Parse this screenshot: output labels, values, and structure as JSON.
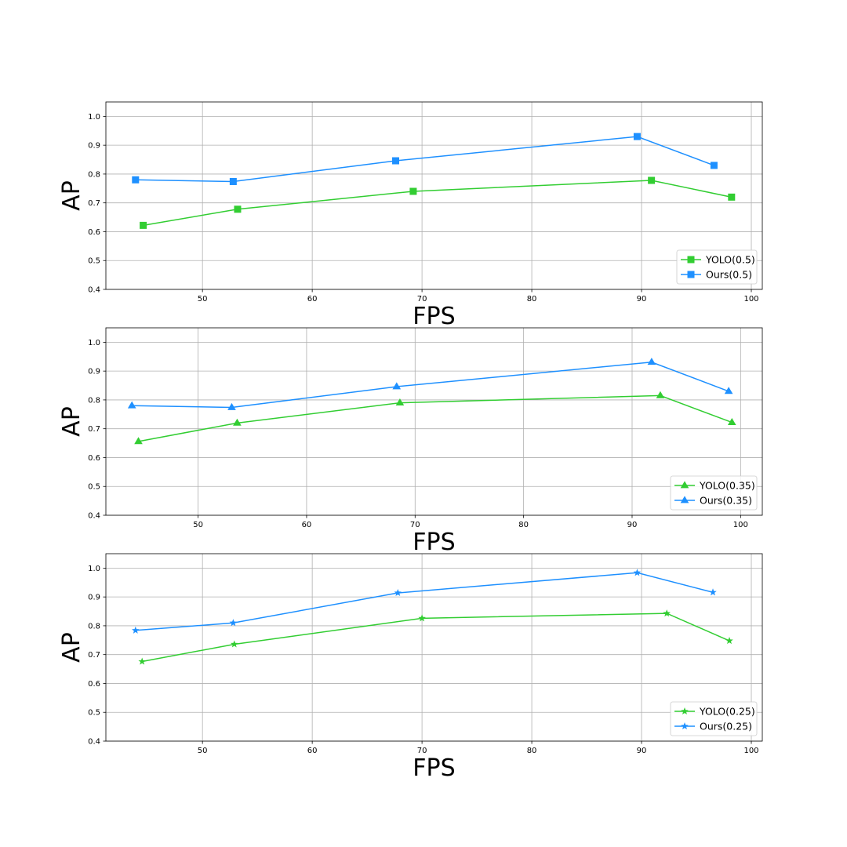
{
  "chart_data": [
    {
      "type": "line",
      "xlabel": "FPS",
      "ylabel": "AP",
      "xlim": [
        41.2,
        101.0
      ],
      "ylim": [
        0.4,
        1.05
      ],
      "xticks": [
        50,
        60,
        70,
        80,
        90,
        100
      ],
      "yticks": [
        0.4,
        0.5,
        0.6,
        0.7,
        0.8,
        0.9,
        1.0
      ],
      "xtick_labels": [
        "50",
        "60",
        "70",
        "80",
        "90",
        "100"
      ],
      "ytick_labels": [
        "0.4",
        "0.5",
        "0.6",
        "0.7",
        "0.8",
        "0.9",
        "1.0"
      ],
      "grid": true,
      "legend_position": "bottom-right",
      "marker": "square",
      "series": [
        {
          "name": "YOLO(0.5)",
          "color": "#32cd32",
          "x": [
            44.6,
            53.2,
            69.2,
            90.9,
            98.2
          ],
          "y": [
            0.622,
            0.678,
            0.74,
            0.778,
            0.72
          ]
        },
        {
          "name": "Ours(0.5)",
          "color": "#1e90ff",
          "x": [
            43.9,
            52.8,
            67.6,
            89.6,
            96.6
          ],
          "y": [
            0.78,
            0.774,
            0.846,
            0.93,
            0.83
          ]
        }
      ]
    },
    {
      "type": "line",
      "xlabel": "FPS",
      "ylabel": "AP",
      "xlim": [
        41.5,
        102.0
      ],
      "ylim": [
        0.4,
        1.05
      ],
      "xticks": [
        50,
        60,
        70,
        80,
        90,
        100
      ],
      "yticks": [
        0.4,
        0.5,
        0.6,
        0.7,
        0.8,
        0.9,
        1.0
      ],
      "xtick_labels": [
        "50",
        "60",
        "70",
        "80",
        "90",
        "100"
      ],
      "ytick_labels": [
        "0.4",
        "0.5",
        "0.6",
        "0.7",
        "0.8",
        "0.9",
        "1.0"
      ],
      "grid": true,
      "legend_position": "bottom-right",
      "marker": "triangle",
      "series": [
        {
          "name": "YOLO(0.35)",
          "color": "#32cd32",
          "x": [
            44.5,
            53.6,
            68.6,
            92.6,
            99.2
          ],
          "y": [
            0.656,
            0.72,
            0.79,
            0.815,
            0.722
          ]
        },
        {
          "name": "Ours(0.35)",
          "color": "#1e90ff",
          "x": [
            43.9,
            53.1,
            68.3,
            91.8,
            98.9
          ],
          "y": [
            0.78,
            0.774,
            0.846,
            0.931,
            0.83
          ]
        }
      ]
    },
    {
      "type": "line",
      "xlabel": "FPS",
      "ylabel": "AP",
      "xlim": [
        41.2,
        101.0
      ],
      "ylim": [
        0.4,
        1.05
      ],
      "xticks": [
        50,
        60,
        70,
        80,
        90,
        100
      ],
      "yticks": [
        0.4,
        0.5,
        0.6,
        0.7,
        0.8,
        0.9,
        1.0
      ],
      "xtick_labels": [
        "50",
        "60",
        "70",
        "80",
        "90",
        "100"
      ],
      "ytick_labels": [
        "0.4",
        "0.5",
        "0.6",
        "0.7",
        "0.8",
        "0.9",
        "1.0"
      ],
      "grid": true,
      "legend_position": "bottom-right",
      "marker": "star",
      "series": [
        {
          "name": "YOLO(0.25)",
          "color": "#32cd32",
          "x": [
            44.5,
            52.9,
            70.0,
            92.3,
            98.0
          ],
          "y": [
            0.676,
            0.736,
            0.826,
            0.843,
            0.748
          ]
        },
        {
          "name": "Ours(0.25)",
          "color": "#1e90ff",
          "x": [
            43.9,
            52.8,
            67.8,
            89.6,
            96.5
          ],
          "y": [
            0.784,
            0.81,
            0.914,
            0.984,
            0.916
          ]
        }
      ]
    }
  ]
}
